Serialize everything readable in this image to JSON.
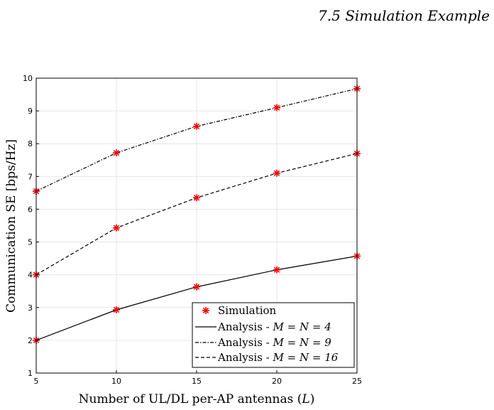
{
  "page_header": "7.5 Simulation Example",
  "chart_data": {
    "type": "line",
    "title": "",
    "xlabel": "Number of UL/DL per-AP antennas (L)",
    "xlabel_main": "Number of UL/DL per-AP antennas (",
    "xlabel_var": "L",
    "xlabel_end": ")",
    "ylabel": "Communication SE [bps/Hz]",
    "x": [
      5,
      10,
      15,
      20,
      25
    ],
    "xlim": [
      5,
      25
    ],
    "ylim": [
      1,
      10
    ],
    "xticks": [
      5,
      10,
      15,
      20,
      25
    ],
    "yticks": [
      1,
      2,
      3,
      4,
      5,
      6,
      7,
      8,
      9,
      10
    ],
    "grid": true,
    "legend_position": "bottom-right",
    "simulation_label": "Simulation",
    "simulation_color": "#ff0000",
    "series": [
      {
        "name": "Analysis - M = N = 4",
        "style": "solid",
        "values": [
          2.0,
          2.93,
          3.63,
          4.15,
          4.57
        ]
      },
      {
        "name": "Analysis - M = N = 9",
        "style": "dashdot",
        "values": [
          6.55,
          7.72,
          8.53,
          9.1,
          9.68
        ]
      },
      {
        "name": "Analysis - M = N = 16",
        "style": "dashed",
        "values": [
          4.0,
          5.43,
          6.35,
          7.1,
          7.7
        ]
      }
    ],
    "legend_entries": [
      {
        "prefix": "Analysis - ",
        "math": "M = N = 4"
      },
      {
        "prefix": "Analysis - ",
        "math": "M = N = 9"
      },
      {
        "prefix": "Analysis - ",
        "math": "M = N = 16"
      }
    ]
  }
}
